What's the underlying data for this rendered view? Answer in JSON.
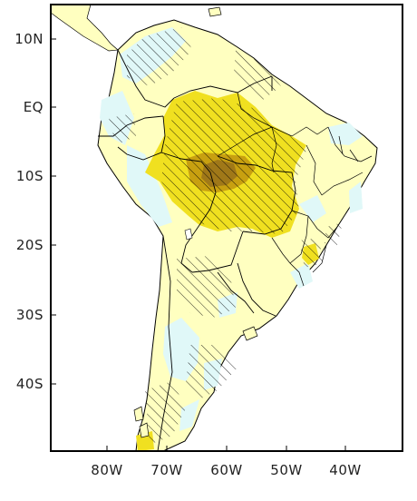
{
  "map": {
    "lat_ticks": [
      "10N",
      "EQ",
      "10S",
      "20S",
      "30S",
      "40S"
    ],
    "lon_ticks": [
      "80W",
      "70W",
      "60W",
      "50W",
      "40W"
    ],
    "colors": {
      "background": "#ffffff",
      "frame": "#000000",
      "pale_yellow": "#ffffc0",
      "light_cyan": "#e0f8f8",
      "yellow": "#f0e020",
      "dark_yellow": "#c8a010",
      "brown": "#a07818",
      "coastline": "#000000",
      "hatch": "#000000"
    }
  }
}
